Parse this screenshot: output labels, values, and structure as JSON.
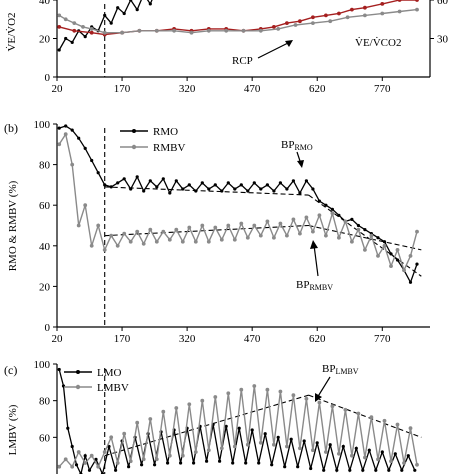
{
  "chart_data": [
    {
      "panel": "",
      "type": "line",
      "ylabel": "V̇E/V̇O2",
      "y2label": "V̇E/V̇CO2",
      "xlim": [
        20,
        880
      ],
      "ylim": [
        0,
        40
      ],
      "y2lim": [
        0,
        60
      ],
      "xticks": [
        "20",
        "170",
        "320",
        "470",
        "620",
        "770"
      ],
      "yticks": [
        "0",
        "20",
        "40"
      ],
      "y2ticks": [
        "30",
        "60"
      ],
      "annotations": [
        {
          "text": "RCP"
        },
        {
          "text": "V̇E/V̇CO2"
        }
      ],
      "vline_x": 130,
      "series": [
        {
          "key": "black",
          "color": "#000000",
          "x": [
            25,
            40,
            55,
            70,
            85,
            100,
            115,
            130,
            145,
            160,
            175,
            190,
            205,
            220,
            235,
            250,
            265,
            280,
            295,
            310,
            325,
            340,
            355,
            370,
            385,
            400,
            415,
            430,
            445,
            460,
            470
          ],
          "y": [
            14,
            20,
            18,
            24,
            21,
            26,
            24,
            32,
            28,
            36,
            33,
            40,
            35,
            43,
            38,
            46,
            41,
            48,
            43,
            49,
            44,
            49,
            45,
            49,
            46,
            49,
            46,
            49,
            47,
            49,
            48
          ]
        },
        {
          "key": "red",
          "color": "#a51f1f",
          "x": [
            25,
            60,
            100,
            130,
            170,
            210,
            250,
            290,
            330,
            370,
            410,
            450,
            490,
            520,
            550,
            580,
            610,
            640,
            670,
            700,
            730,
            770,
            810,
            850
          ],
          "y": [
            26,
            24,
            23,
            22,
            23,
            24,
            24,
            25,
            24,
            25,
            25,
            24,
            25,
            26,
            28,
            29,
            31,
            32,
            33,
            35,
            36,
            38,
            40,
            40
          ]
        },
        {
          "key": "gray",
          "color": "#8a8a8a",
          "x": [
            25,
            40,
            60,
            80,
            100,
            130,
            170,
            210,
            250,
            290,
            330,
            370,
            410,
            450,
            490,
            530,
            570,
            610,
            650,
            690,
            730,
            770,
            810,
            850
          ],
          "y": [
            32,
            30,
            28,
            26,
            25,
            23,
            23,
            24,
            24,
            24,
            23,
            24,
            24,
            24,
            24,
            25,
            27,
            28,
            29,
            31,
            32,
            33,
            34,
            35
          ]
        }
      ]
    },
    {
      "panel": "(b)",
      "type": "line",
      "ylabel": "RMO & RMBV (%)",
      "xlim": [
        20,
        880
      ],
      "ylim": [
        0,
        100
      ],
      "xticks": [
        "20",
        "170",
        "320",
        "470",
        "620",
        "770"
      ],
      "yticks": [
        "0",
        "20",
        "40",
        "60",
        "80",
        "100"
      ],
      "legend": [
        "RMO",
        "RMBV"
      ],
      "annotations": [
        {
          "text": "BP",
          "sub": "RMO"
        },
        {
          "text": "BP",
          "sub": "RMBV"
        }
      ],
      "vline_x": 130,
      "series": [
        {
          "name": "RMO",
          "color": "#000000",
          "x": [
            25,
            40,
            55,
            70,
            85,
            100,
            115,
            130,
            145,
            160,
            175,
            190,
            205,
            220,
            235,
            250,
            265,
            280,
            295,
            310,
            325,
            340,
            355,
            370,
            385,
            400,
            415,
            430,
            445,
            460,
            475,
            490,
            505,
            520,
            535,
            550,
            565,
            580,
            595,
            610,
            625,
            640,
            655,
            670,
            685,
            700,
            715,
            730,
            745,
            760,
            775,
            790,
            805,
            820,
            835,
            850
          ],
          "y": [
            98,
            99,
            97,
            93,
            88,
            82,
            76,
            70,
            69,
            71,
            73,
            68,
            74,
            67,
            72,
            69,
            73,
            66,
            72,
            68,
            70,
            67,
            71,
            68,
            70,
            67,
            71,
            68,
            70,
            67,
            71,
            68,
            70,
            67,
            71,
            68,
            72,
            66,
            72,
            68,
            62,
            60,
            58,
            55,
            52,
            53,
            50,
            48,
            46,
            44,
            42,
            36,
            33,
            28,
            22,
            31
          ]
        },
        {
          "name": "RMBV",
          "color": "#8a8a8a",
          "x": [
            25,
            40,
            55,
            70,
            85,
            100,
            115,
            130,
            145,
            160,
            175,
            190,
            205,
            220,
            235,
            250,
            265,
            280,
            295,
            310,
            325,
            340,
            355,
            370,
            385,
            400,
            415,
            430,
            445,
            460,
            475,
            490,
            505,
            520,
            535,
            550,
            565,
            580,
            595,
            610,
            625,
            640,
            655,
            670,
            685,
            700,
            715,
            730,
            745,
            760,
            775,
            790,
            805,
            820,
            835,
            850
          ],
          "y": [
            90,
            95,
            80,
            50,
            60,
            40,
            50,
            38,
            45,
            40,
            46,
            42,
            47,
            41,
            48,
            42,
            47,
            43,
            48,
            42,
            49,
            42,
            50,
            42,
            49,
            43,
            50,
            43,
            51,
            44,
            50,
            45,
            52,
            44,
            51,
            45,
            53,
            46,
            54,
            47,
            55,
            45,
            56,
            44,
            52,
            42,
            48,
            38,
            45,
            35,
            40,
            30,
            38,
            28,
            35,
            47
          ]
        }
      ],
      "trend_lines": [
        {
          "x": [
            130,
            600
          ],
          "y": [
            69,
            65
          ]
        },
        {
          "x": [
            130,
            600
          ],
          "y": [
            45,
            50
          ]
        },
        {
          "x": [
            600,
            860
          ],
          "y": [
            65,
            25
          ]
        },
        {
          "x": [
            600,
            860
          ],
          "y": [
            50,
            38
          ]
        }
      ]
    },
    {
      "panel": "(c)",
      "type": "line",
      "ylabel": "LMBV (%)",
      "xlim": [
        20,
        880
      ],
      "ylim": [
        40,
        100
      ],
      "yticks": [
        "60",
        "80",
        "100"
      ],
      "legend": [
        "LMO",
        "LMBV"
      ],
      "annotations": [
        {
          "text": "BP",
          "sub": "LMBV"
        }
      ],
      "vline_x": 130,
      "series": [
        {
          "name": "LMO",
          "color": "#000000",
          "x": [
            25,
            35,
            45,
            55,
            65,
            75,
            85,
            95,
            110,
            125,
            140,
            155,
            170,
            185,
            200,
            215,
            230,
            245,
            260,
            275,
            290,
            305,
            320,
            335,
            350,
            365,
            380,
            395,
            410,
            425,
            440,
            455,
            470,
            485,
            500,
            515,
            530,
            545,
            560,
            575,
            590,
            605,
            620,
            635,
            650,
            665,
            680,
            695,
            710,
            725,
            740,
            755,
            770,
            785,
            800,
            815,
            830,
            845
          ],
          "y": [
            97,
            88,
            65,
            55,
            45,
            40,
            50,
            42,
            48,
            40,
            55,
            42,
            58,
            44,
            60,
            45,
            62,
            45,
            63,
            46,
            64,
            46,
            65,
            46,
            66,
            47,
            67,
            47,
            66,
            46,
            65,
            46,
            64,
            46,
            62,
            45,
            60,
            44,
            59,
            44,
            58,
            43,
            57,
            42,
            56,
            42,
            55,
            42,
            54,
            42,
            53,
            42,
            52,
            42,
            51,
            42,
            50,
            42
          ]
        },
        {
          "name": "LMBV",
          "color": "#8a8a8a",
          "x": [
            25,
            40,
            55,
            70,
            85,
            100,
            115,
            130,
            145,
            160,
            175,
            190,
            205,
            220,
            235,
            250,
            265,
            280,
            295,
            310,
            325,
            340,
            355,
            370,
            385,
            400,
            415,
            430,
            445,
            460,
            475,
            490,
            505,
            520,
            535,
            550,
            565,
            580,
            595,
            610,
            625,
            640,
            655,
            670,
            685,
            700,
            715,
            730,
            745,
            760,
            775,
            790,
            805,
            820,
            835,
            850
          ],
          "y": [
            44,
            48,
            44,
            52,
            46,
            50,
            44,
            52,
            60,
            46,
            62,
            47,
            68,
            48,
            70,
            48,
            74,
            50,
            76,
            50,
            78,
            52,
            80,
            53,
            82,
            54,
            84,
            55,
            86,
            56,
            88,
            57,
            86,
            56,
            85,
            55,
            83,
            54,
            81,
            53,
            79,
            52,
            77,
            51,
            75,
            50,
            73,
            49,
            71,
            48,
            69,
            47,
            67,
            46,
            65,
            45
          ]
        }
      ],
      "trend_lines": [
        {
          "x": [
            130,
            600
          ],
          "y": [
            50,
            83
          ]
        },
        {
          "x": [
            600,
            860
          ],
          "y": [
            83,
            60
          ]
        }
      ]
    }
  ]
}
